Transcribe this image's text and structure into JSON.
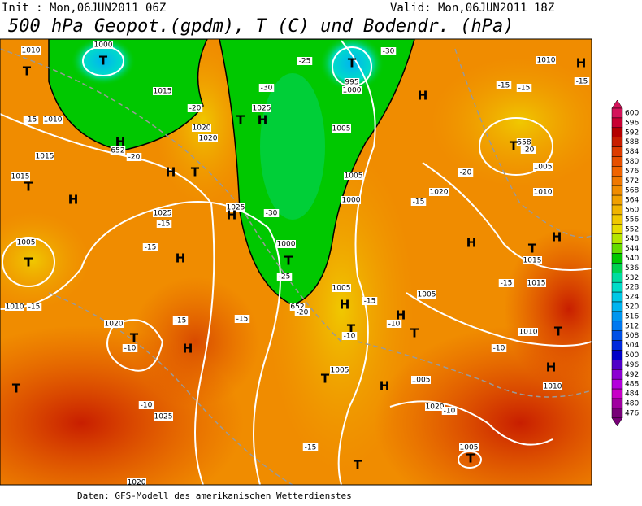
{
  "header": {
    "init": "Init : Mon,06JUN2011 06Z",
    "valid": "Valid: Mon,06JUN2011 18Z",
    "title": "500 hPa Geopot.(gpdm), T (C) und Bodendr. (hPa)"
  },
  "colorbar": {
    "levels": [
      600,
      596,
      592,
      588,
      584,
      580,
      576,
      572,
      568,
      564,
      560,
      556,
      552,
      548,
      544,
      540,
      536,
      532,
      528,
      524,
      520,
      516,
      512,
      508,
      504,
      500,
      496,
      492,
      488,
      484,
      480,
      476
    ],
    "colors": [
      "#d4145a",
      "#c80032",
      "#b40000",
      "#c81e00",
      "#dc3c00",
      "#e65000",
      "#f06400",
      "#f07800",
      "#f08c00",
      "#f0a000",
      "#f0b400",
      "#f0c800",
      "#e6dc00",
      "#b4e600",
      "#64dc00",
      "#00c800",
      "#00d250",
      "#00dca0",
      "#00dcc8",
      "#00c8e6",
      "#00b4f0",
      "#0096f0",
      "#0078f0",
      "#0050e6",
      "#0028dc",
      "#0000c8",
      "#5000c8",
      "#8c00d2",
      "#b400dc",
      "#c800c8",
      "#a000a0",
      "#780078"
    ]
  },
  "map": {
    "labels": [
      "T",
      "1000",
      "T",
      "995",
      "1000",
      "-30",
      "-25",
      "1010",
      "T",
      "1015",
      "1010",
      "-15",
      "-20",
      "1020",
      "1020",
      "H",
      "652",
      "1015",
      "-20",
      "H",
      "T",
      "1015",
      "T",
      "H",
      "1025",
      "H",
      "T",
      "-30",
      "1005",
      "1005",
      "1000",
      "-30",
      "1025",
      "H",
      "1025",
      "-15",
      "1005",
      "T",
      "-15",
      "H",
      "1000",
      "T",
      "-25",
      "652",
      "-20",
      "1010",
      "-15",
      "1020",
      "T",
      "-10",
      "H",
      "-15",
      "-15",
      "1005",
      "H",
      "-15",
      "1005",
      "H",
      "T",
      "-10",
      "T",
      "-10",
      "H",
      "558",
      "T",
      "-20",
      "1005",
      "1010",
      "-15",
      "-15",
      "1010",
      "H",
      "-15",
      "1020",
      "-20",
      "-15",
      "H",
      "T",
      "1015",
      "H",
      "-15",
      "1015",
      "1010",
      "T",
      "-10",
      "H",
      "1010",
      "T",
      "T",
      "1005",
      "H",
      "1005",
      "-10",
      "1025",
      "1020",
      "-10",
      "-15",
      "1005",
      "T",
      "T",
      "1020"
    ]
  },
  "footer": "Daten: GFS-Modell des amerikanischen Wetterdienstes"
}
